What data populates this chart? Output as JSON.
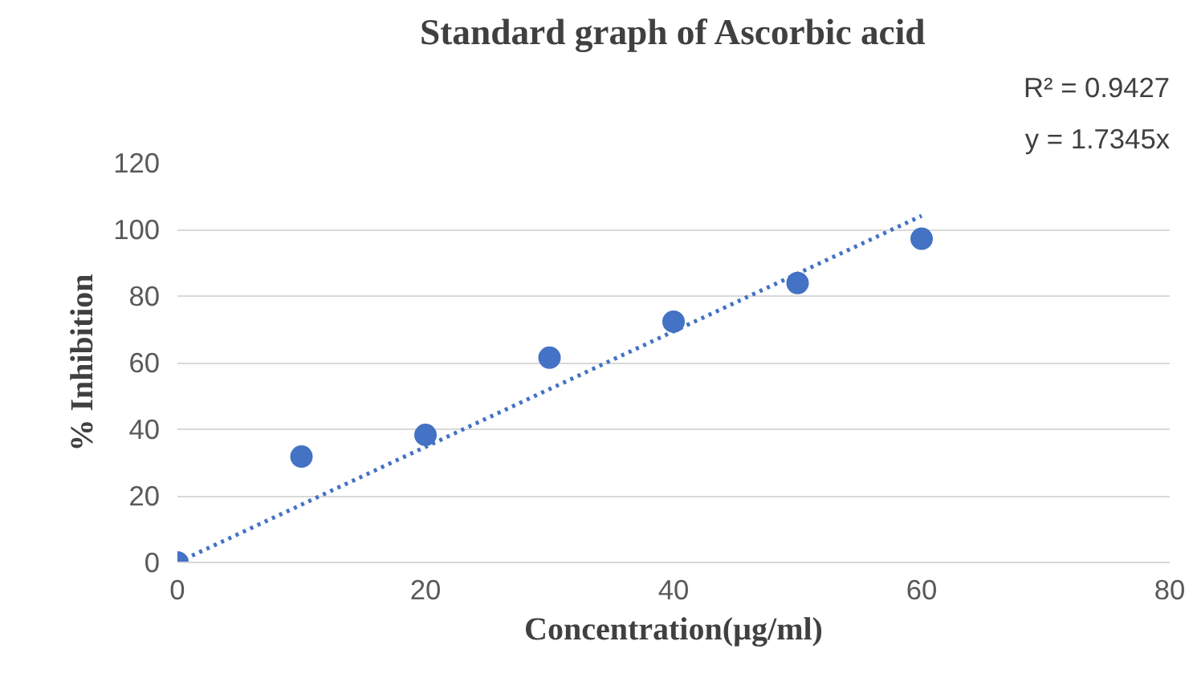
{
  "chart_data": {
    "type": "scatter",
    "title": "Standard graph of Ascorbic acid",
    "xlabel": "Concentration(µg/ml)",
    "ylabel": "% Inhibition",
    "x": [
      0,
      10,
      20,
      30,
      40,
      50,
      60
    ],
    "series": [
      {
        "color": "#4472c4",
        "values": [
          0,
          31.8,
          38.3,
          61.5,
          72.3,
          83.9,
          97.2
        ],
        "marker": "circle"
      },
      {
        "type": "line",
        "color": "#4472c4",
        "x": [
          0,
          60
        ],
        "values": [
          0,
          104.1
        ],
        "line_style": "dotted",
        "marker": "none"
      }
    ],
    "annotations": [
      "y = 1.7345x",
      "R² = 0.9427"
    ],
    "xlim": [
      0,
      80
    ],
    "xticks": [
      0,
      20,
      40,
      60,
      80
    ],
    "ylim": [
      0,
      120
    ],
    "yticks": [
      0,
      20,
      40,
      60,
      80,
      100,
      120
    ],
    "grid": "y"
  }
}
